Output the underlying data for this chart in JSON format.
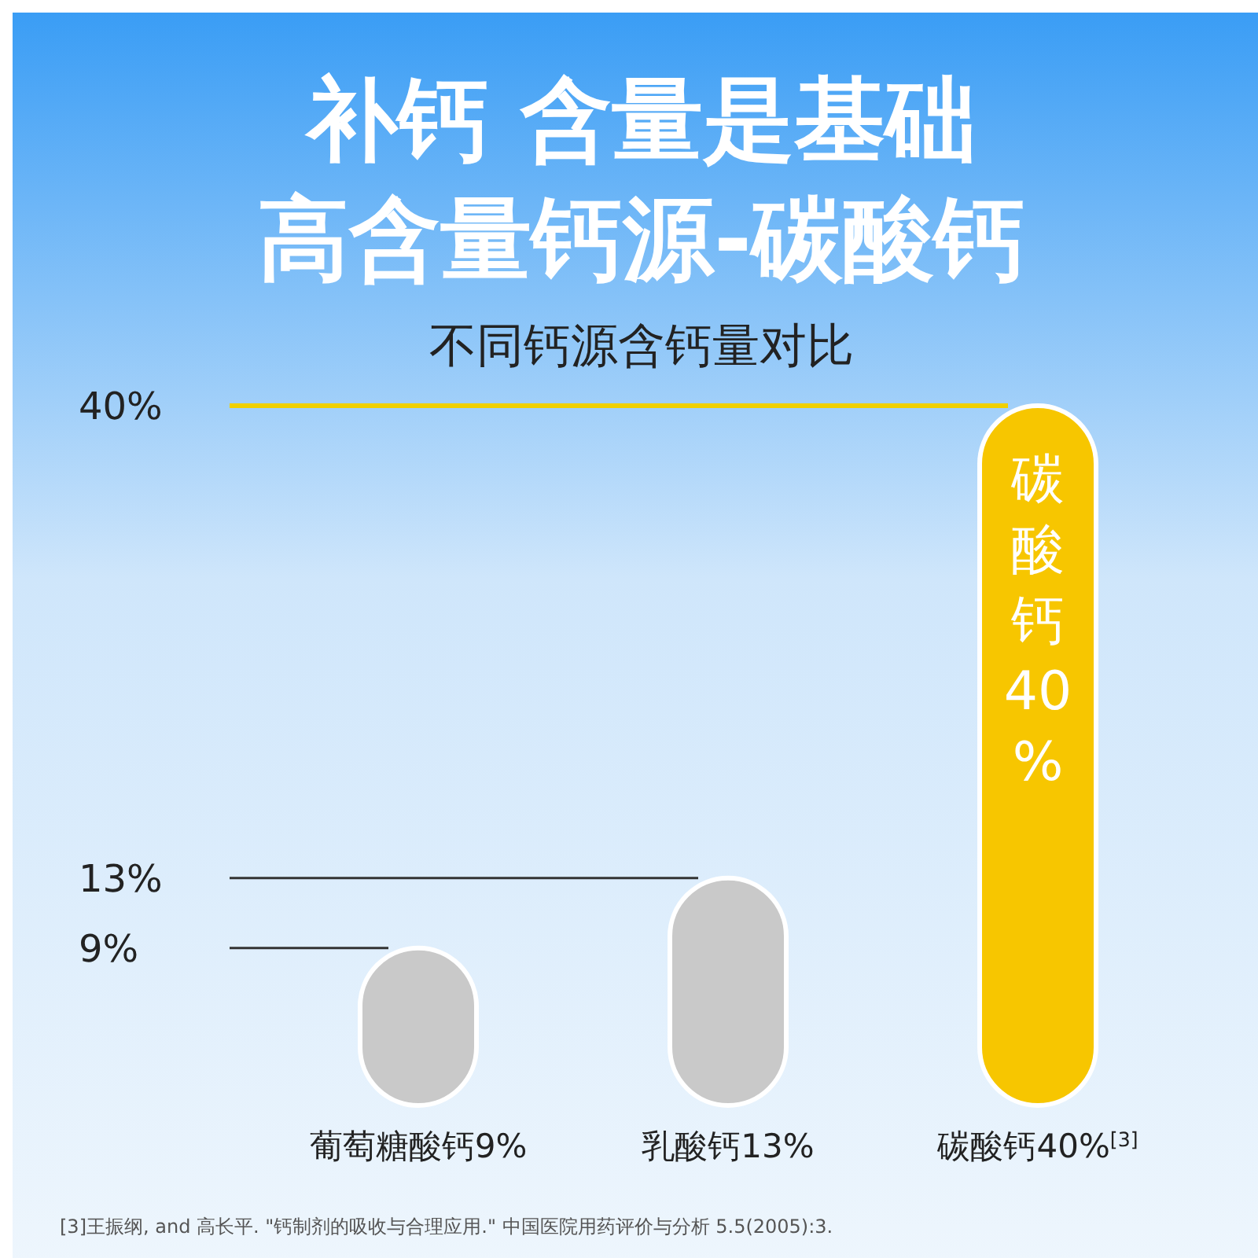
{
  "chart_data": {
    "type": "bar",
    "title": "补钙 含量是基础高含量钙源-碳酸钙",
    "subtitle": "不同钙源含钙量对比",
    "categories": [
      "葡萄糖酸钙9%",
      "乳酸钙13%",
      "碳酸钙40%$^{[3]}$"
    ],
    "values": [
      9,
      13,
      40
    ],
    "colors": [
      "#c9c9c9",
      "#c9c9c9",
      "#f7c600"
    ],
    "value_labels": [
      null,
      null,
      "碳酸钙40%"
    ],
    "ylim": [
      0,
      40
    ],
    "ref_lines": [
      {
        "axis": "y",
        "value": 9,
        "color": "#333333"
      },
      {
        "axis": "y",
        "value": 13,
        "color": "#333333"
      },
      {
        "axis": "y",
        "value": 40,
        "color": "#f0d000"
      }
    ],
    "yticks": [
      {
        "value": 9,
        "label": "9%"
      },
      {
        "value": 13,
        "label": "13%"
      },
      {
        "value": 40,
        "label": "40%"
      }
    ],
    "annotations": [
      "[3]王振纲, and 高长平. \"钙制剂的吸收与合理应用.\" 中国医院用药评价与分析 5.5(2005):3."
    ]
  }
}
